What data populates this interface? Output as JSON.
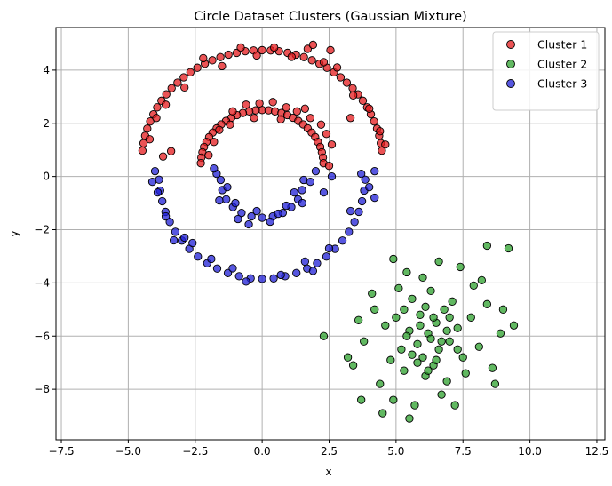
{
  "chart_data": {
    "type": "scatter",
    "title": "Circle Dataset Clusters (Gaussian Mixture)",
    "xlabel": "x",
    "ylabel": "y",
    "xlim": [
      -7.7,
      12.8
    ],
    "ylim": [
      -9.9,
      5.6
    ],
    "xticks": [
      -7.5,
      -5.0,
      -2.5,
      0.0,
      2.5,
      5.0,
      7.5,
      10.0,
      12.5
    ],
    "xtick_labels": [
      "−7.5",
      "−5.0",
      "−2.5",
      "0.0",
      "2.5",
      "5.0",
      "7.5",
      "10.0",
      "12.5"
    ],
    "yticks": [
      -8,
      -6,
      -4,
      -2,
      0,
      2,
      4
    ],
    "ytick_labels": [
      "−8",
      "−6",
      "−4",
      "−2",
      "0",
      "2",
      "4"
    ],
    "grid": true,
    "legend_position": "top-right",
    "series": [
      {
        "name": "Cluster 1",
        "color": "#e41a1c",
        "points": [
          [
            0.0,
            4.75
          ],
          [
            -0.32,
            4.74
          ],
          [
            -0.63,
            4.71
          ],
          [
            -0.95,
            4.65
          ],
          [
            -1.26,
            4.58
          ],
          [
            -1.56,
            4.49
          ],
          [
            -1.86,
            4.37
          ],
          [
            -2.14,
            4.24
          ],
          [
            -2.42,
            4.09
          ],
          [
            -2.68,
            3.92
          ],
          [
            -2.93,
            3.73
          ],
          [
            -3.16,
            3.53
          ],
          [
            -3.38,
            3.32
          ],
          [
            -3.58,
            3.09
          ],
          [
            -3.76,
            2.85
          ],
          [
            -3.92,
            2.6
          ],
          [
            -4.06,
            2.34
          ],
          [
            -4.18,
            2.07
          ],
          [
            -4.29,
            1.8
          ],
          [
            -4.37,
            1.53
          ],
          [
            -4.43,
            1.25
          ],
          [
            -4.47,
            0.97
          ],
          [
            0.32,
            4.74
          ],
          [
            0.63,
            4.71
          ],
          [
            0.95,
            4.65
          ],
          [
            1.26,
            4.58
          ],
          [
            1.56,
            4.49
          ],
          [
            1.86,
            4.37
          ],
          [
            2.14,
            4.24
          ],
          [
            2.42,
            4.09
          ],
          [
            2.68,
            3.92
          ],
          [
            2.93,
            3.73
          ],
          [
            3.16,
            3.53
          ],
          [
            3.38,
            3.32
          ],
          [
            3.58,
            3.09
          ],
          [
            3.76,
            2.85
          ],
          [
            3.92,
            2.6
          ],
          [
            4.06,
            2.34
          ],
          [
            4.18,
            2.07
          ],
          [
            4.29,
            1.8
          ],
          [
            4.37,
            1.53
          ],
          [
            4.43,
            1.25
          ],
          [
            4.47,
            0.97
          ],
          [
            -0.2,
            4.55
          ],
          [
            0.45,
            4.85
          ],
          [
            1.1,
            4.5
          ],
          [
            1.7,
            4.8
          ],
          [
            2.3,
            4.3
          ],
          [
            -0.8,
            4.85
          ],
          [
            -1.5,
            4.15
          ],
          [
            -2.2,
            4.45
          ],
          [
            -2.9,
            3.35
          ],
          [
            -3.6,
            2.7
          ],
          [
            -3.95,
            2.2
          ],
          [
            -4.2,
            1.4
          ],
          [
            2.8,
            4.1
          ],
          [
            3.4,
            3.05
          ],
          [
            4.0,
            2.55
          ],
          [
            4.4,
            1.7
          ],
          [
            4.6,
            1.2
          ],
          [
            -3.4,
            0.95
          ],
          [
            -3.7,
            0.75
          ],
          [
            3.3,
            2.2
          ],
          [
            1.9,
            4.95
          ],
          [
            2.55,
            4.75
          ],
          [
            0.0,
            2.5
          ],
          [
            -0.24,
            2.49
          ],
          [
            -0.48,
            2.45
          ],
          [
            -0.72,
            2.39
          ],
          [
            -0.94,
            2.31
          ],
          [
            -1.15,
            2.21
          ],
          [
            -1.35,
            2.09
          ],
          [
            -1.53,
            1.96
          ],
          [
            -1.7,
            1.81
          ],
          [
            -1.85,
            1.65
          ],
          [
            -1.98,
            1.48
          ],
          [
            -2.08,
            1.3
          ],
          [
            -2.17,
            1.11
          ],
          [
            -2.23,
            0.91
          ],
          [
            -2.27,
            0.71
          ],
          [
            -2.29,
            0.5
          ],
          [
            0.24,
            2.49
          ],
          [
            0.48,
            2.45
          ],
          [
            0.72,
            2.39
          ],
          [
            0.94,
            2.31
          ],
          [
            1.15,
            2.21
          ],
          [
            1.35,
            2.09
          ],
          [
            1.53,
            1.96
          ],
          [
            1.7,
            1.81
          ],
          [
            1.85,
            1.65
          ],
          [
            1.98,
            1.48
          ],
          [
            2.08,
            1.3
          ],
          [
            2.17,
            1.11
          ],
          [
            2.23,
            0.91
          ],
          [
            2.27,
            0.71
          ],
          [
            2.29,
            0.5
          ],
          [
            -0.1,
            2.75
          ],
          [
            0.4,
            2.8
          ],
          [
            0.9,
            2.6
          ],
          [
            1.3,
            2.45
          ],
          [
            1.8,
            2.2
          ],
          [
            2.4,
            1.6
          ],
          [
            2.6,
            1.2
          ],
          [
            -0.6,
            2.7
          ],
          [
            -1.1,
            2.45
          ],
          [
            -1.6,
            1.75
          ],
          [
            -1.8,
            1.3
          ],
          [
            -2.0,
            0.8
          ],
          [
            0.7,
            2.15
          ],
          [
            1.6,
            2.55
          ],
          [
            2.2,
            1.95
          ],
          [
            -1.2,
            1.95
          ],
          [
            -0.3,
            2.2
          ],
          [
            2.5,
            0.4
          ]
        ]
      },
      {
        "name": "Cluster 2",
        "color": "#2ca02c",
        "points": [
          [
            6.2,
            -5.9
          ],
          [
            5.8,
            -6.3
          ],
          [
            6.5,
            -5.5
          ],
          [
            7.0,
            -6.2
          ],
          [
            5.5,
            -5.8
          ],
          [
            6.0,
            -6.8
          ],
          [
            6.8,
            -5.0
          ],
          [
            5.2,
            -6.5
          ],
          [
            6.4,
            -7.1
          ],
          [
            7.3,
            -5.7
          ],
          [
            5.0,
            -5.3
          ],
          [
            6.6,
            -6.5
          ],
          [
            5.9,
            -5.2
          ],
          [
            6.1,
            -7.5
          ],
          [
            7.5,
            -6.8
          ],
          [
            4.8,
            -6.9
          ],
          [
            5.6,
            -4.6
          ],
          [
            7.1,
            -4.7
          ],
          [
            6.9,
            -7.7
          ],
          [
            5.3,
            -7.3
          ],
          [
            4.6,
            -5.6
          ],
          [
            7.8,
            -5.3
          ],
          [
            6.3,
            -4.3
          ],
          [
            5.1,
            -4.2
          ],
          [
            7.6,
            -7.4
          ],
          [
            4.4,
            -7.8
          ],
          [
            6.7,
            -8.2
          ],
          [
            8.1,
            -6.4
          ],
          [
            4.2,
            -5.0
          ],
          [
            5.7,
            -8.6
          ],
          [
            8.4,
            -4.8
          ],
          [
            3.8,
            -6.2
          ],
          [
            6.0,
            -3.8
          ],
          [
            7.9,
            -4.1
          ],
          [
            4.9,
            -8.4
          ],
          [
            3.6,
            -5.4
          ],
          [
            8.6,
            -7.2
          ],
          [
            6.6,
            -3.2
          ],
          [
            5.4,
            -3.6
          ],
          [
            7.2,
            -8.6
          ],
          [
            4.1,
            -4.4
          ],
          [
            8.9,
            -5.9
          ],
          [
            3.4,
            -7.1
          ],
          [
            5.5,
            -9.1
          ],
          [
            4.5,
            -8.9
          ],
          [
            8.7,
            -7.8
          ],
          [
            7.4,
            -3.4
          ],
          [
            3.7,
            -8.4
          ],
          [
            8.2,
            -3.9
          ],
          [
            3.2,
            -6.8
          ],
          [
            9.2,
            -2.7
          ],
          [
            8.4,
            -2.6
          ],
          [
            9.4,
            -5.6
          ],
          [
            2.3,
            -6.0
          ],
          [
            4.9,
            -3.1
          ],
          [
            9.0,
            -5.0
          ],
          [
            6.3,
            -6.1
          ],
          [
            5.8,
            -7.0
          ],
          [
            6.9,
            -5.8
          ],
          [
            6.1,
            -4.9
          ],
          [
            5.4,
            -6.0
          ],
          [
            6.5,
            -6.9
          ],
          [
            7.0,
            -5.3
          ],
          [
            5.9,
            -5.6
          ],
          [
            6.7,
            -6.2
          ],
          [
            5.6,
            -6.7
          ],
          [
            6.4,
            -5.3
          ],
          [
            5.3,
            -5.0
          ],
          [
            6.2,
            -7.3
          ],
          [
            7.3,
            -6.5
          ]
        ]
      },
      {
        "name": "Cluster 3",
        "color": "#1f1fd6",
        "points": [
          [
            0.0,
            -3.85
          ],
          [
            -0.43,
            -3.83
          ],
          [
            -0.86,
            -3.75
          ],
          [
            -1.28,
            -3.63
          ],
          [
            -1.68,
            -3.46
          ],
          [
            -2.05,
            -3.26
          ],
          [
            -2.4,
            -3.01
          ],
          [
            -2.72,
            -2.72
          ],
          [
            -3.0,
            -2.41
          ],
          [
            -3.24,
            -2.08
          ],
          [
            -3.45,
            -1.71
          ],
          [
            -3.61,
            -1.33
          ],
          [
            -3.73,
            -0.93
          ],
          [
            -3.81,
            -0.53
          ],
          [
            -3.85,
            -0.12
          ],
          [
            0.43,
            -3.83
          ],
          [
            0.86,
            -3.75
          ],
          [
            1.28,
            -3.63
          ],
          [
            1.68,
            -3.46
          ],
          [
            2.05,
            -3.26
          ],
          [
            2.4,
            -3.01
          ],
          [
            2.72,
            -2.72
          ],
          [
            3.0,
            -2.41
          ],
          [
            3.24,
            -2.08
          ],
          [
            3.45,
            -1.71
          ],
          [
            3.61,
            -1.33
          ],
          [
            3.73,
            -0.93
          ],
          [
            3.81,
            -0.53
          ],
          [
            3.85,
            -0.12
          ],
          [
            -0.6,
            -3.95
          ],
          [
            0.7,
            -3.7
          ],
          [
            1.6,
            -3.2
          ],
          [
            -1.9,
            -3.1
          ],
          [
            -3.3,
            -2.4
          ],
          [
            -3.9,
            -0.6
          ],
          [
            -4.0,
            0.2
          ],
          [
            2.5,
            -2.7
          ],
          [
            3.3,
            -1.3
          ],
          [
            4.0,
            -0.4
          ],
          [
            4.2,
            0.2
          ],
          [
            -2.6,
            -2.5
          ],
          [
            -3.6,
            -1.5
          ],
          [
            1.9,
            -3.55
          ],
          [
            -1.1,
            -3.45
          ],
          [
            -4.1,
            -0.2
          ],
          [
            3.7,
            0.1
          ],
          [
            4.2,
            -0.8
          ],
          [
            -2.9,
            -2.3
          ],
          [
            0.0,
            -1.55
          ],
          [
            -0.4,
            -1.5
          ],
          [
            -0.77,
            -1.37
          ],
          [
            -1.09,
            -1.15
          ],
          [
            -1.34,
            -0.86
          ],
          [
            -1.49,
            -0.51
          ],
          [
            -1.55,
            -0.13
          ],
          [
            0.4,
            -1.5
          ],
          [
            0.77,
            -1.37
          ],
          [
            1.09,
            -1.15
          ],
          [
            1.34,
            -0.86
          ],
          [
            1.49,
            -0.51
          ],
          [
            1.55,
            -0.13
          ],
          [
            -0.2,
            -1.3
          ],
          [
            0.3,
            -1.7
          ],
          [
            -0.9,
            -1.6
          ],
          [
            0.9,
            -1.1
          ],
          [
            -1.3,
            -0.4
          ],
          [
            1.2,
            -0.6
          ],
          [
            -1.7,
            0.1
          ],
          [
            1.8,
            -0.2
          ],
          [
            -1.6,
            -0.9
          ],
          [
            1.5,
            -1.0
          ],
          [
            -0.5,
            -1.8
          ],
          [
            0.6,
            -1.4
          ],
          [
            -1.0,
            -1.0
          ],
          [
            2.0,
            0.2
          ],
          [
            -1.8,
            0.3
          ],
          [
            2.6,
            0.0
          ],
          [
            2.3,
            -0.6
          ]
        ]
      }
    ]
  }
}
